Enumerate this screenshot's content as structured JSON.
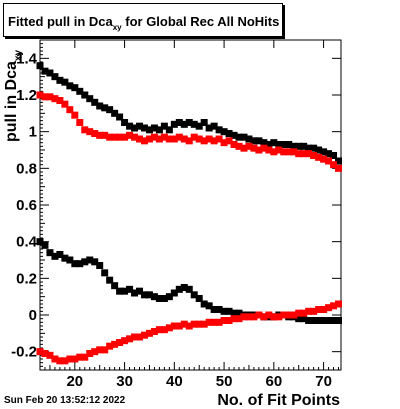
{
  "title": {
    "prefix": "Fitted pull in Dca",
    "subscript": "xy",
    "suffix": " for Global Rec All NoHits"
  },
  "timestamp": "Sun Feb 20 13:52:12 2022",
  "chart_data": {
    "type": "scatter",
    "title": "Fitted pull in Dca_xy for Global Rec All NoHits",
    "xlabel": "No. of Fit Points",
    "ylabel": "pull in Dca_xy",
    "xlim": [
      13,
      73.5
    ],
    "ylim": [
      -0.3,
      1.5
    ],
    "xticks": [
      20,
      30,
      40,
      50,
      60,
      70
    ],
    "yticks": [
      -0.2,
      0,
      0.2,
      0.4,
      0.6,
      0.8,
      1,
      1.2,
      1.4
    ],
    "marker": "square",
    "grid": false,
    "series": [
      {
        "color": "#000000",
        "description": "upper black",
        "x": [
          13,
          14,
          15,
          16,
          17,
          18,
          19,
          20,
          21,
          22,
          23,
          24,
          25,
          26,
          27,
          28,
          29,
          30,
          31,
          32,
          33,
          34,
          35,
          36,
          37,
          38,
          39,
          40,
          41,
          42,
          43,
          44,
          45,
          46,
          47,
          48,
          49,
          50,
          51,
          52,
          53,
          54,
          55,
          56,
          57,
          58,
          59,
          60,
          61,
          62,
          63,
          64,
          65,
          66,
          67,
          68,
          69,
          70,
          71,
          72,
          73
        ],
        "y": [
          1.36,
          1.33,
          1.32,
          1.3,
          1.28,
          1.27,
          1.25,
          1.24,
          1.22,
          1.2,
          1.18,
          1.16,
          1.14,
          1.13,
          1.12,
          1.1,
          1.08,
          1.05,
          1.03,
          1.02,
          1.03,
          1.02,
          1.01,
          1.02,
          1.01,
          1.03,
          1.01,
          1.04,
          1.05,
          1.04,
          1.05,
          1.04,
          1.03,
          1.05,
          1.02,
          1.03,
          1.01,
          1.0,
          0.99,
          0.98,
          0.97,
          0.97,
          0.96,
          0.95,
          0.95,
          0.94,
          0.93,
          0.94,
          0.93,
          0.93,
          0.93,
          0.92,
          0.92,
          0.92,
          0.91,
          0.91,
          0.9,
          0.89,
          0.88,
          0.87,
          0.84
        ]
      },
      {
        "color": "#ff0000",
        "description": "upper red",
        "x": [
          13,
          14,
          15,
          16,
          17,
          18,
          19,
          20,
          21,
          22,
          23,
          24,
          25,
          26,
          27,
          28,
          29,
          30,
          31,
          32,
          33,
          34,
          35,
          36,
          37,
          38,
          39,
          40,
          41,
          42,
          43,
          44,
          45,
          46,
          47,
          48,
          49,
          50,
          51,
          52,
          53,
          54,
          55,
          56,
          57,
          58,
          59,
          60,
          61,
          62,
          63,
          64,
          65,
          66,
          67,
          68,
          69,
          70,
          71,
          72,
          73
        ],
        "y": [
          1.2,
          1.19,
          1.19,
          1.18,
          1.17,
          1.15,
          1.12,
          1.09,
          1.05,
          1.01,
          1.0,
          0.99,
          0.98,
          0.98,
          0.97,
          0.97,
          0.97,
          0.97,
          0.98,
          0.97,
          0.96,
          0.95,
          0.96,
          0.97,
          0.96,
          0.97,
          0.96,
          0.96,
          0.97,
          0.96,
          0.95,
          0.97,
          0.96,
          0.95,
          0.96,
          0.95,
          0.96,
          0.94,
          0.95,
          0.93,
          0.92,
          0.91,
          0.92,
          0.91,
          0.9,
          0.91,
          0.9,
          0.89,
          0.9,
          0.89,
          0.89,
          0.89,
          0.88,
          0.88,
          0.88,
          0.87,
          0.86,
          0.85,
          0.84,
          0.82,
          0.8
        ]
      },
      {
        "color": "#000000",
        "description": "lower black",
        "x": [
          13,
          14,
          15,
          16,
          17,
          18,
          19,
          20,
          21,
          22,
          23,
          24,
          25,
          26,
          27,
          28,
          29,
          30,
          31,
          32,
          33,
          34,
          35,
          36,
          37,
          38,
          39,
          40,
          41,
          42,
          43,
          44,
          45,
          46,
          47,
          48,
          49,
          50,
          51,
          52,
          53,
          54,
          55,
          56,
          57,
          58,
          59,
          60,
          61,
          62,
          63,
          64,
          65,
          66,
          67,
          68,
          69,
          70,
          71,
          72,
          73
        ],
        "y": [
          0.4,
          0.38,
          0.34,
          0.32,
          0.33,
          0.31,
          0.3,
          0.28,
          0.28,
          0.29,
          0.3,
          0.29,
          0.27,
          0.23,
          0.19,
          0.16,
          0.13,
          0.13,
          0.14,
          0.12,
          0.13,
          0.11,
          0.11,
          0.1,
          0.09,
          0.09,
          0.1,
          0.12,
          0.14,
          0.15,
          0.14,
          0.11,
          0.09,
          0.06,
          0.05,
          0.03,
          0.03,
          0.02,
          0.02,
          0.01,
          0.01,
          0.0,
          0.0,
          0.0,
          0.0,
          -0.01,
          -0.01,
          -0.01,
          0.0,
          0.0,
          -0.01,
          -0.01,
          -0.02,
          -0.02,
          -0.03,
          -0.03,
          -0.03,
          -0.03,
          -0.03,
          -0.03,
          -0.03
        ]
      },
      {
        "color": "#ff0000",
        "description": "lower red",
        "x": [
          13,
          14,
          15,
          16,
          17,
          18,
          19,
          20,
          21,
          22,
          23,
          24,
          25,
          26,
          27,
          28,
          29,
          30,
          31,
          32,
          33,
          34,
          35,
          36,
          37,
          38,
          39,
          40,
          41,
          42,
          43,
          44,
          45,
          46,
          47,
          48,
          49,
          50,
          51,
          52,
          53,
          54,
          55,
          56,
          57,
          58,
          59,
          60,
          61,
          62,
          63,
          64,
          65,
          66,
          67,
          68,
          69,
          70,
          71,
          72,
          73
        ],
        "y": [
          -0.2,
          -0.21,
          -0.22,
          -0.24,
          -0.25,
          -0.25,
          -0.24,
          -0.24,
          -0.23,
          -0.23,
          -0.21,
          -0.2,
          -0.19,
          -0.19,
          -0.17,
          -0.16,
          -0.15,
          -0.14,
          -0.13,
          -0.12,
          -0.12,
          -0.11,
          -0.1,
          -0.09,
          -0.08,
          -0.08,
          -0.07,
          -0.06,
          -0.06,
          -0.05,
          -0.06,
          -0.05,
          -0.05,
          -0.05,
          -0.04,
          -0.04,
          -0.04,
          -0.03,
          -0.03,
          -0.02,
          -0.02,
          -0.01,
          -0.01,
          -0.01,
          0.0,
          -0.01,
          0.0,
          -0.01,
          -0.01,
          0.0,
          0.0,
          0.0,
          0.01,
          0.01,
          0.02,
          0.02,
          0.03,
          0.03,
          0.04,
          0.05,
          0.06
        ]
      }
    ]
  }
}
